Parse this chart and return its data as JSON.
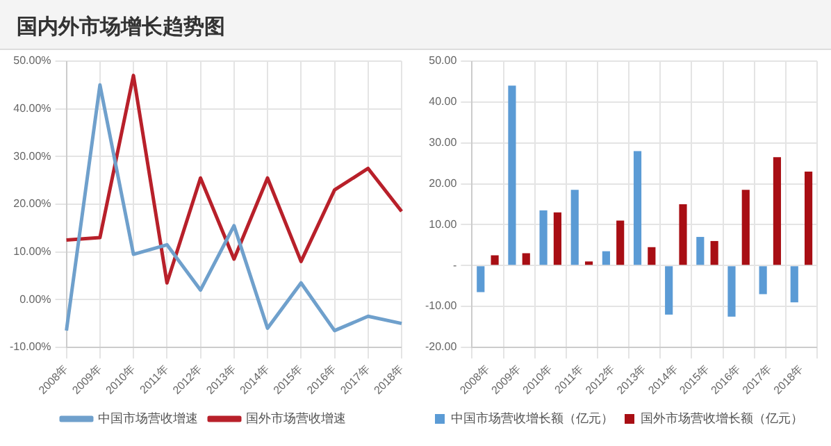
{
  "chart_data": [
    {
      "type": "line",
      "title": "国内外市场增长趋势图",
      "categories": [
        "2008年",
        "2009年",
        "2010年",
        "2011年",
        "2012年",
        "2013年",
        "2014年",
        "2015年",
        "2016年",
        "2017年",
        "2018年"
      ],
      "series": [
        {
          "name": "中国市场营收增速",
          "color": "#6fa0cc",
          "values": [
            -6.5,
            45,
            9.5,
            11.5,
            2,
            15.5,
            -6,
            3.5,
            -6.5,
            -3.5,
            -5
          ]
        },
        {
          "name": "国外市场营收增速",
          "color": "#b8202a",
          "values": [
            12.5,
            13,
            47,
            3.5,
            25.5,
            8.5,
            25.5,
            8,
            23,
            27.5,
            18.5
          ]
        }
      ],
      "ylim": [
        -10,
        50
      ],
      "yticks": [
        {
          "value": -10,
          "label": "-10.00%"
        },
        {
          "value": 0,
          "label": "0.00%"
        },
        {
          "value": 10,
          "label": "10.00%"
        },
        {
          "value": 20,
          "label": "20.00%"
        },
        {
          "value": 30,
          "label": "30.00%"
        },
        {
          "value": 40,
          "label": "40.00%"
        },
        {
          "value": 50,
          "label": "50.00%"
        }
      ],
      "grid": true,
      "legend": "bottom",
      "marker": "none",
      "line_style": "solid"
    },
    {
      "type": "bar",
      "categories": [
        "2008年",
        "2009年",
        "2010年",
        "2011年",
        "2012年",
        "2013年",
        "2014年",
        "2015年",
        "2016年",
        "2017年",
        "2018年"
      ],
      "series": [
        {
          "name": "中国市场营收增长额（亿元）",
          "color": "#5b9bd5",
          "values": [
            -6.5,
            44,
            13.5,
            18.5,
            3.5,
            28,
            -12,
            7,
            -12.5,
            -7,
            -9
          ]
        },
        {
          "name": "国外市场营收增长额（亿元）",
          "color": "#a80e14",
          "values": [
            2.5,
            3,
            13,
            1,
            11,
            4.5,
            15,
            6,
            18.5,
            26.5,
            23
          ]
        }
      ],
      "ylim": [
        -20,
        50
      ],
      "yticks": [
        {
          "value": -20,
          "label": "-20.00"
        },
        {
          "value": -10,
          "label": "-10.00"
        },
        {
          "value": 0,
          "label": "-"
        },
        {
          "value": 10,
          "label": "10.00"
        },
        {
          "value": 20,
          "label": "20.00"
        },
        {
          "value": 30,
          "label": "30.00"
        },
        {
          "value": 40,
          "label": "40.00"
        },
        {
          "value": 50,
          "label": "50.00"
        }
      ],
      "grid": true,
      "legend": "bottom"
    }
  ]
}
